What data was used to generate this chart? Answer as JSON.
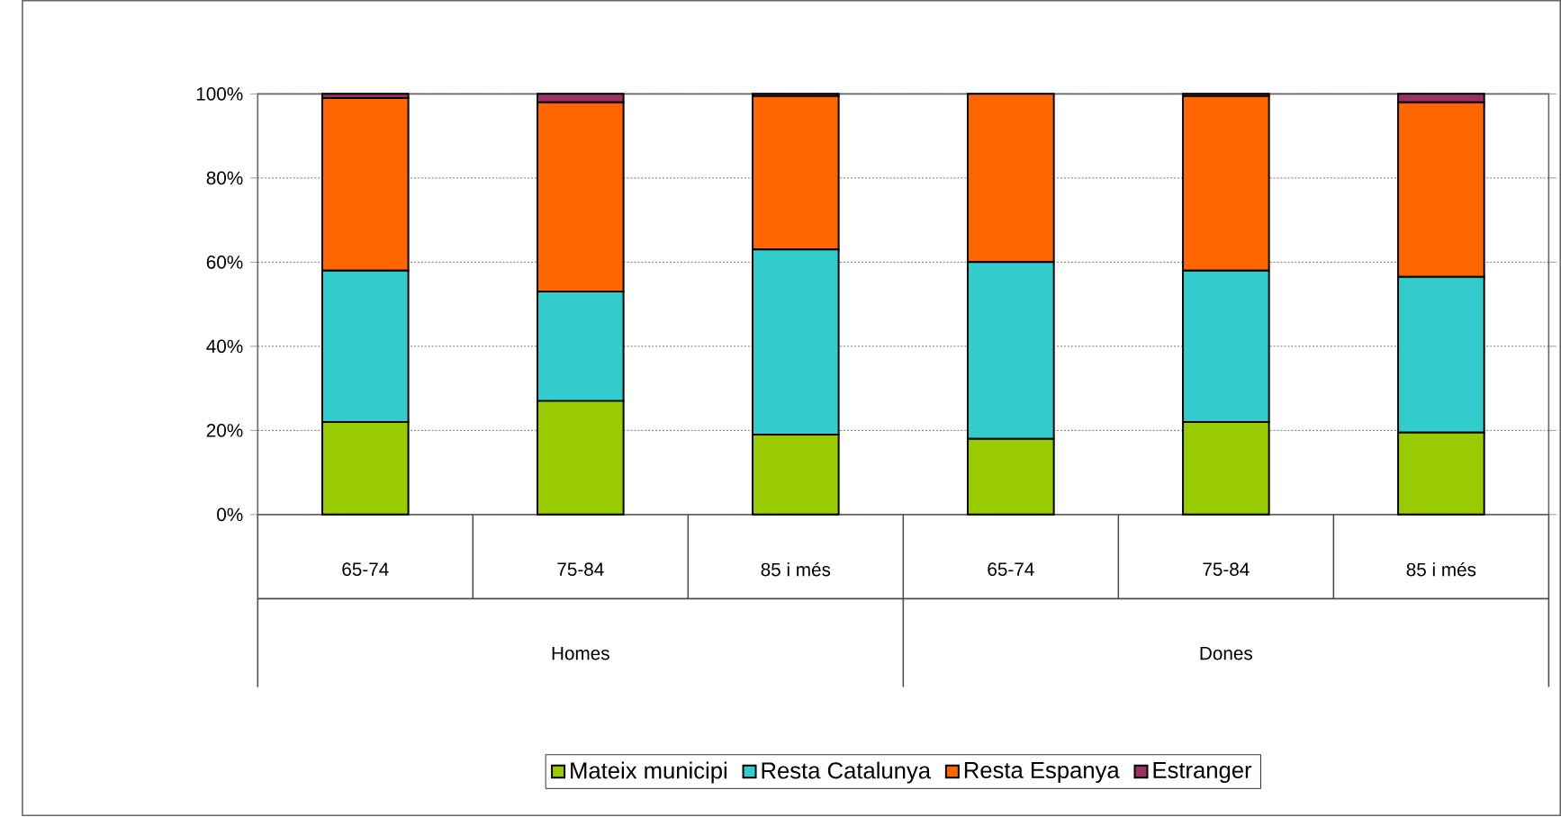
{
  "chart_data": {
    "type": "bar",
    "stacked": true,
    "categories": [
      "65-74",
      "75-84",
      "85 i més",
      "65-74",
      "75-84",
      "85 i més"
    ],
    "series": [
      {
        "name": "Mateix municipi",
        "color": "#99cc00",
        "values": [
          22,
          27,
          19,
          18,
          22,
          19.5
        ]
      },
      {
        "name": "Resta Catalunya",
        "color": "#33cccc",
        "values": [
          36,
          26,
          44,
          42,
          36,
          37
        ]
      },
      {
        "name": "Resta Espanya",
        "color": "#ff6600",
        "values": [
          41,
          45,
          36.5,
          40,
          41.5,
          41.5
        ]
      },
      {
        "name": "Estranger",
        "color": "#993366",
        "values": [
          1,
          2,
          0.5,
          0,
          0.5,
          2
        ]
      }
    ],
    "annotations": [
      "Homes",
      "Dones"
    ],
    "ylim": [
      0,
      100
    ],
    "yticks": [
      {
        "value": 0,
        "label": "0%"
      },
      {
        "value": 20,
        "label": "20%"
      },
      {
        "value": 40,
        "label": "40%"
      },
      {
        "value": 60,
        "label": "60%"
      },
      {
        "value": 80,
        "label": "80%"
      },
      {
        "value": 100,
        "label": "100%"
      }
    ],
    "grid": "y",
    "legend": "bottom"
  }
}
